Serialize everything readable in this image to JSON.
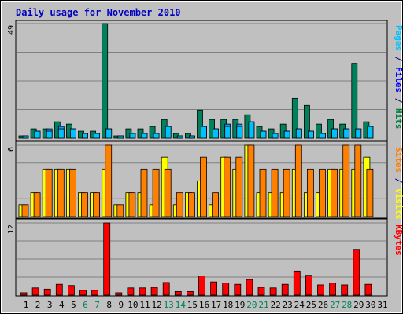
{
  "chart_data": {
    "title": "Daily usage for November 2010",
    "type": "bar",
    "x": [
      "1",
      "2",
      "3",
      "4",
      "5",
      "6",
      "7",
      "8",
      "9",
      "10",
      "11",
      "12",
      "13",
      "14",
      "15",
      "16",
      "17",
      "18",
      "19",
      "20",
      "21",
      "22",
      "23",
      "24",
      "25",
      "26",
      "27",
      "28",
      "29",
      "30",
      "31"
    ],
    "weekend_days": [
      "6",
      "7",
      "13",
      "14",
      "20",
      "21",
      "27",
      "28"
    ],
    "panels": [
      {
        "id": "hits-files-pages",
        "axis_max_label": "49",
        "ylim": [
          0,
          49
        ],
        "side_labels": [
          {
            "text": "Pages",
            "color": "#00c0ff"
          },
          {
            "text": " / ",
            "color": "#000080"
          },
          {
            "text": "Files",
            "color": "#0000ff"
          },
          {
            "text": " / ",
            "color": "#000080"
          },
          {
            "text": "Hits",
            "color": "#008040"
          }
        ],
        "series": [
          {
            "name": "Hits",
            "color": "#00805c",
            "values": [
              1,
              4,
              4,
              7,
              6,
              3,
              3,
              49,
              1,
              4,
              4,
              5,
              8,
              2,
              2,
              12,
              8,
              8,
              8,
              10,
              5,
              4,
              6,
              17,
              14,
              6,
              8,
              6,
              32,
              7,
              0
            ]
          },
          {
            "name": "Files",
            "color": "#2090ff",
            "values": [
              1,
              3,
              4,
              5,
              4,
              2,
              2,
              4,
              1,
              2,
              2,
              2,
              5,
              1,
              1,
              5,
              4,
              6,
              6,
              7,
              3,
              2,
              3,
              4,
              3,
              2,
              4,
              4,
              4,
              5,
              0
            ]
          },
          {
            "name": "Pages",
            "color": "#00c0ff",
            "values": [
              1,
              3,
              3,
              4,
              4,
              2,
              2,
              4,
              1,
              2,
              2,
              2,
              5,
              1,
              1,
              5,
              4,
              5,
              5,
              7,
              3,
              2,
              3,
              4,
              3,
              2,
              4,
              4,
              4,
              5,
              0
            ]
          }
        ]
      },
      {
        "id": "visits-sites",
        "axis_max_label": "6",
        "ylim": [
          0,
          6
        ],
        "side_labels": [
          {
            "text": "Sites",
            "color": "#ff8000"
          },
          {
            "text": " / ",
            "color": "#000080"
          },
          {
            "text": "Visits",
            "color": "#ffff00"
          }
        ],
        "series": [
          {
            "name": "Visits",
            "color": "#ffff00",
            "values": [
              1,
              2,
              4,
              4,
              4,
              2,
              2,
              4,
              1,
              2,
              2,
              1,
              5,
              1,
              2,
              3,
              1,
              5,
              4,
              6,
              2,
              2,
              2,
              4,
              2,
              2,
              4,
              4,
              4,
              5,
              0
            ]
          },
          {
            "name": "Sites",
            "color": "#ff8000",
            "values": [
              1,
              2,
              4,
              4,
              4,
              2,
              2,
              6,
              1,
              2,
              4,
              4,
              4,
              2,
              2,
              5,
              2,
              5,
              5,
              6,
              4,
              4,
              4,
              6,
              4,
              4,
              4,
              6,
              6,
              4,
              0
            ]
          }
        ]
      },
      {
        "id": "kbytes",
        "axis_max_label": "12",
        "ylim": [
          0,
          12
        ],
        "side_labels": [
          {
            "text": "KBytes",
            "color": "#ff0000"
          }
        ],
        "series": [
          {
            "name": "KBytes",
            "color": "#ff0000",
            "values": [
              0.4,
              1.2,
              1.0,
              1.8,
              1.6,
              0.8,
              0.8,
              12,
              0.4,
              1.2,
              1.2,
              1.3,
              2.1,
              0.6,
              0.6,
              3.2,
              2.2,
              2.0,
              1.8,
              2.6,
              1.3,
              1.2,
              1.8,
              4.0,
              3.3,
              1.7,
              2.0,
              1.7,
              7.6,
              1.8,
              0
            ]
          }
        ]
      }
    ],
    "colors": {
      "background": "#ffffff",
      "plot_background": "#c0c0c0",
      "gridline": "#808080",
      "weekday_label": "#000000",
      "weekend_label": "#00805c"
    }
  }
}
